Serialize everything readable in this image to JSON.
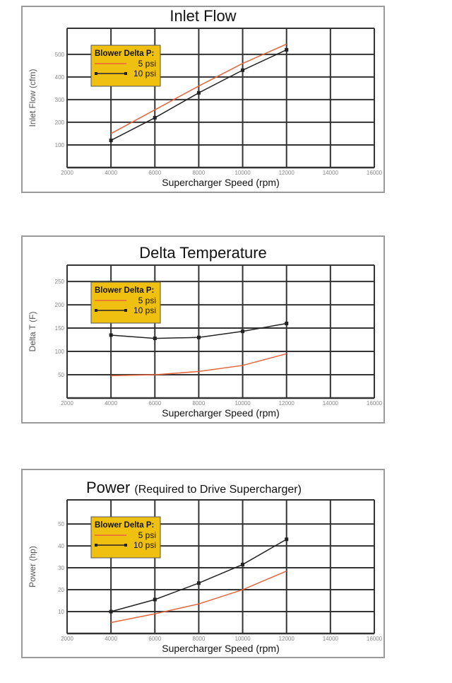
{
  "chart_data": [
    {
      "type": "line",
      "title": "Inlet Flow",
      "subtitle": "",
      "xlabel": "Supercharger Speed (rpm)",
      "ylabel": "Inlet Flow (cfm)",
      "xlim": [
        2000,
        16000
      ],
      "ylim": [
        0,
        615
      ],
      "xticks": [
        2000,
        4000,
        6000,
        8000,
        10000,
        12000,
        14000,
        16000
      ],
      "yticks": [
        100,
        200,
        300,
        400,
        500
      ],
      "grid": true,
      "legend": {
        "title": "Blower Delta P:",
        "placement": "top-left"
      },
      "series": [
        {
          "name": "5 psi",
          "color": "#e8643c",
          "markers": false,
          "x": [
            4000,
            6000,
            8000,
            10000,
            12000
          ],
          "y": [
            150,
            255,
            360,
            460,
            545
          ]
        },
        {
          "name": "10 psi",
          "color": "#222222",
          "markers": true,
          "x": [
            4000,
            6000,
            8000,
            10000,
            12000
          ],
          "y": [
            120,
            220,
            330,
            430,
            520
          ]
        }
      ]
    },
    {
      "type": "line",
      "title": "Delta Temperature",
      "subtitle": "",
      "xlabel": "Supercharger Speed (rpm)",
      "ylabel": "Delta T (F)",
      "xlim": [
        2000,
        16000
      ],
      "ylim": [
        0,
        285
      ],
      "xticks": [
        2000,
        4000,
        6000,
        8000,
        10000,
        12000,
        14000,
        16000
      ],
      "yticks": [
        50,
        100,
        150,
        200,
        250
      ],
      "grid": true,
      "legend": {
        "title": "Blower Delta P:",
        "placement": "top-left"
      },
      "series": [
        {
          "name": "5 psi",
          "color": "#e8643c",
          "markers": false,
          "x": [
            4000,
            6000,
            8000,
            10000,
            12000
          ],
          "y": [
            48,
            50,
            57,
            70,
            95
          ]
        },
        {
          "name": "10 psi",
          "color": "#222222",
          "markers": true,
          "x": [
            4000,
            6000,
            8000,
            10000,
            12000
          ],
          "y": [
            135,
            128,
            130,
            143,
            160
          ]
        }
      ]
    },
    {
      "type": "line",
      "title": "Power",
      "subtitle": "(Required to Drive Supercharger)",
      "xlabel": "Supercharger Speed (rpm)",
      "ylabel": "Power (hp)",
      "xlim": [
        2000,
        16000
      ],
      "ylim": [
        0,
        61
      ],
      "xticks": [
        2000,
        4000,
        6000,
        8000,
        10000,
        12000,
        14000,
        16000
      ],
      "yticks": [
        10,
        20,
        30,
        40,
        50
      ],
      "grid": true,
      "legend": {
        "title": "Blower Delta P:",
        "placement": "top-left"
      },
      "series": [
        {
          "name": "5 psi",
          "color": "#e8643c",
          "markers": false,
          "x": [
            4000,
            6000,
            8000,
            10000,
            12000
          ],
          "y": [
            5,
            9,
            13.5,
            20,
            28.5
          ]
        },
        {
          "name": "10 psi",
          "color": "#222222",
          "markers": true,
          "x": [
            4000,
            6000,
            8000,
            10000,
            12000
          ],
          "y": [
            10,
            15.5,
            23,
            31.5,
            43
          ]
        }
      ]
    }
  ],
  "colors": {
    "legend_bg": "#f0c010",
    "grid": "#333333",
    "tick_text": "#888888"
  }
}
